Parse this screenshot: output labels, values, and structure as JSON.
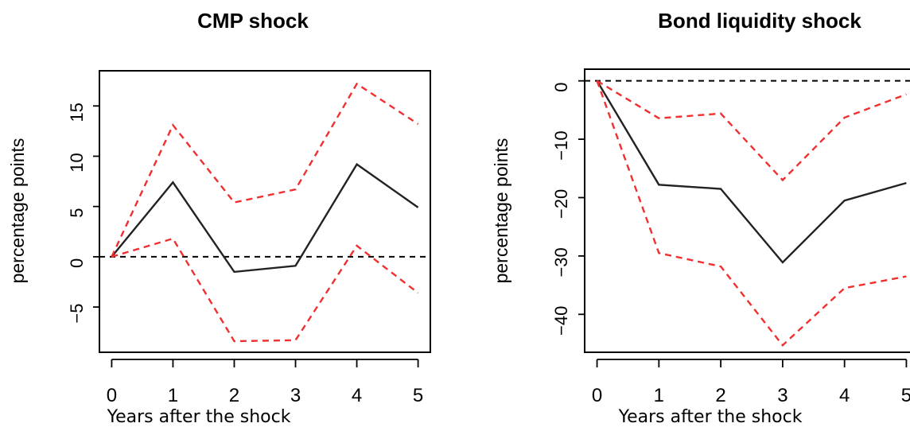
{
  "chart_data": [
    {
      "type": "line",
      "title": "CMP shock",
      "ylabel": "percentage points",
      "xlabel": "Years after the shock",
      "x": [
        0,
        1,
        2,
        3,
        4,
        5
      ],
      "xticks": [
        "0",
        "1",
        "2",
        "3",
        "4",
        "5"
      ],
      "yticks": [
        -5,
        0,
        5,
        10,
        15
      ],
      "ylim": [
        -9.5,
        18.5
      ],
      "xlim": [
        -0.2,
        5.2
      ],
      "reference_line": 0,
      "series": [
        {
          "values": [
            0,
            7.4,
            -1.5,
            -0.9,
            9.2,
            4.9
          ],
          "color": "#222222",
          "style": "solid"
        },
        {
          "values": [
            0,
            13.1,
            5.4,
            6.7,
            17.2,
            13.2
          ],
          "color": "#f03030",
          "style": "dashed"
        },
        {
          "values": [
            0,
            1.8,
            -8.4,
            -8.3,
            1.1,
            -3.6
          ],
          "color": "#f03030",
          "style": "dashed"
        }
      ]
    },
    {
      "type": "line",
      "title": "Bond liquidity shock",
      "ylabel": "percentage points",
      "xlabel": "Years after the shock",
      "x": [
        0,
        1,
        2,
        3,
        4,
        5
      ],
      "xticks": [
        "0",
        "1",
        "2",
        "3",
        "4",
        "5"
      ],
      "yticks": [
        -40,
        -30,
        -20,
        -10,
        0
      ],
      "ylim": [
        -46.5,
        2
      ],
      "xlim": [
        -0.2,
        5.2
      ],
      "reference_line": 0,
      "series": [
        {
          "values": [
            0,
            -17.8,
            -18.5,
            -31.1,
            -20.5,
            -17.5
          ],
          "color": "#222222",
          "style": "solid"
        },
        {
          "values": [
            0,
            -6.4,
            -5.6,
            -17.0,
            -6.3,
            -2.3
          ],
          "color": "#f03030",
          "style": "dashed"
        },
        {
          "values": [
            0,
            -29.5,
            -31.8,
            -45.3,
            -35.5,
            -33.5
          ],
          "color": "#f03030",
          "style": "dashed"
        }
      ]
    }
  ]
}
